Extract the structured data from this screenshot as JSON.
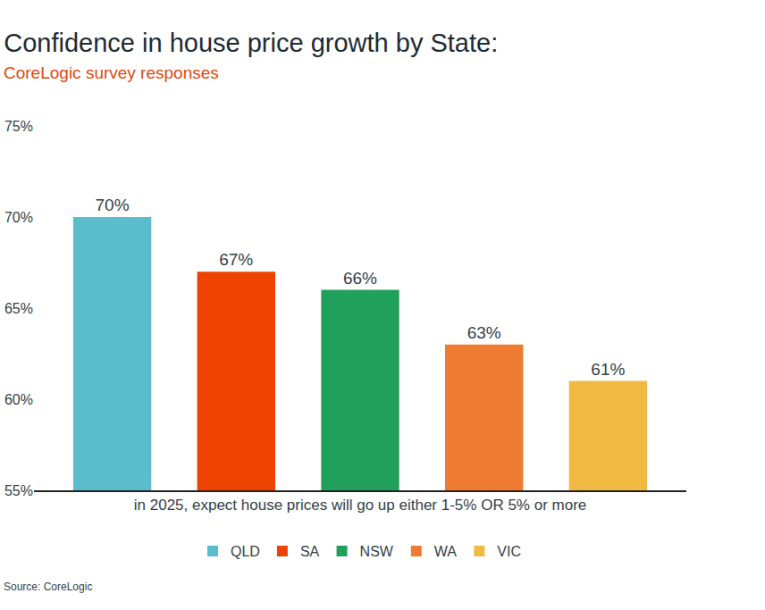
{
  "chart_data": {
    "type": "bar",
    "title": "Confidence in house price growth by State:",
    "subtitle": "CoreLogic survey responses",
    "categories": [
      "in 2025, expect house prices will go up either 1-5% OR 5% or more"
    ],
    "series": [
      {
        "name": "QLD",
        "color": "#5bbdcb",
        "values": [
          70
        ],
        "value_labels": [
          "70%"
        ]
      },
      {
        "name": "SA",
        "color": "#ee4200",
        "values": [
          67
        ],
        "value_labels": [
          "67%"
        ]
      },
      {
        "name": "NSW",
        "color": "#21a05b",
        "values": [
          66
        ],
        "value_labels": [
          "66%"
        ]
      },
      {
        "name": "WA",
        "color": "#ef7b32",
        "values": [
          63
        ],
        "value_labels": [
          "63%"
        ]
      },
      {
        "name": "VIC",
        "color": "#f1bb43",
        "values": [
          61
        ],
        "value_labels": [
          "61%"
        ]
      }
    ],
    "ylim": [
      55,
      75
    ],
    "yticks": [
      {
        "value": 55,
        "label": "55%"
      },
      {
        "value": 60,
        "label": "60%"
      },
      {
        "value": 65,
        "label": "65%"
      },
      {
        "value": 70,
        "label": "70%"
      },
      {
        "value": 75,
        "label": "75%"
      }
    ],
    "grid": false,
    "legend": "bottom",
    "data_labels": true,
    "annotations": [
      "Source: CoreLogic"
    ]
  }
}
